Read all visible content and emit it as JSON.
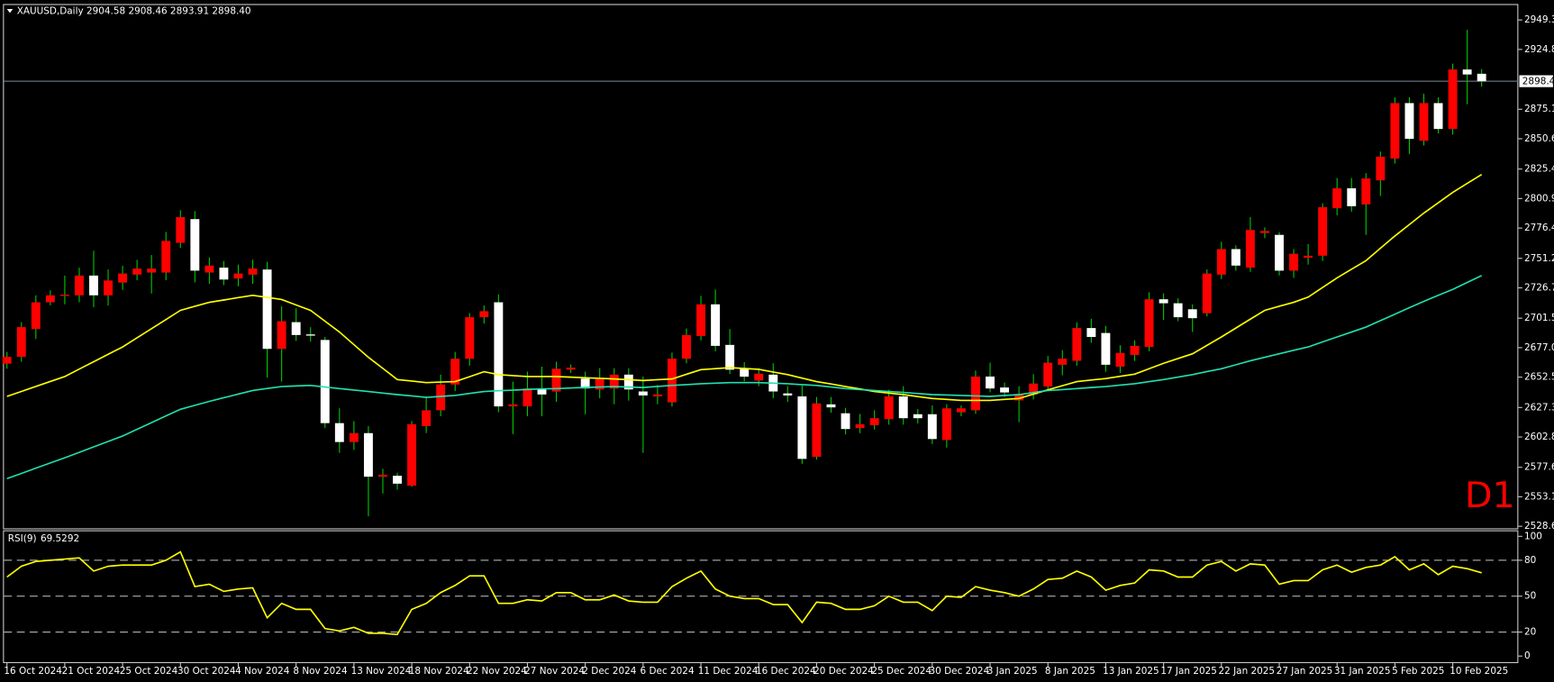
{
  "chart_data": [
    {
      "type": "candlestick",
      "title": "XAUUSD,Daily  2904.58 2908.46 2893.91 2898.40",
      "timeframe_label": "D1",
      "categories": [
        "16 Oct 2024",
        null,
        null,
        null,
        "21 Oct 2024",
        null,
        null,
        null,
        "25 Oct 2024",
        null,
        null,
        null,
        "30 Oct 2024",
        null,
        null,
        null,
        "4 Nov 2024",
        null,
        null,
        null,
        "8 Nov 2024",
        null,
        null,
        null,
        "13 Nov 2024",
        null,
        null,
        null,
        "18 Nov 2024",
        null,
        null,
        null,
        "22 Nov 2024",
        null,
        null,
        null,
        "27 Nov 2024",
        null,
        null,
        null,
        "2 Dec 2024",
        null,
        null,
        null,
        "6 Dec 2024",
        null,
        null,
        null,
        "11 Dec 2024",
        null,
        null,
        null,
        "16 Dec 2024",
        null,
        null,
        null,
        "20 Dec 2024",
        null,
        null,
        null,
        "25 Dec 2024",
        null,
        null,
        null,
        "30 Dec 2024",
        null,
        null,
        null,
        "3 Jan 2025",
        null,
        null,
        null,
        "8 Jan 2025",
        null,
        null,
        null,
        "13 Jan 2025",
        null,
        null,
        null,
        "17 Jan 2025",
        null,
        null,
        null,
        "22 Jan 2025",
        null,
        null,
        null,
        "27 Jan 2025",
        null,
        null,
        null,
        "31 Jan 2025",
        null,
        null,
        null,
        "5 Feb 2025",
        null,
        null,
        null,
        "10 Feb 2025",
        null,
        null
      ],
      "open": [
        2663.7,
        2669.4,
        2692.5,
        2714.7,
        2720,
        2720.5,
        2736.9,
        2720.5,
        2731.1,
        2737.7,
        2739.4,
        2739.4,
        2764.1,
        2783.8,
        2739.4,
        2743.5,
        2734.5,
        2737.7,
        2741.9,
        2676.0,
        2698.2,
        2688,
        2683.4,
        2614.3,
        2598.6,
        2606.0,
        2569.8,
        2570.6,
        2562.4,
        2611.8,
        2625.0,
        2646.4,
        2667.8,
        2702.3,
        2714.7,
        2628.2,
        2628.2,
        2642.3,
        2640.6,
        2658.7,
        2651.3,
        2642.3,
        2643.1,
        2654.6,
        2640.6,
        2636.5,
        2631.6,
        2667.8,
        2686.7,
        2713.0,
        2679.3,
        2659.5,
        2649.7,
        2654.6,
        2639.0,
        2636.5,
        2586.3,
        2629.9,
        2622.5,
        2610.2,
        2612.6,
        2617.6,
        2636.5,
        2621.7,
        2621.7,
        2600.3,
        2623.3,
        2625.0,
        2653.0,
        2643.9,
        2633.2,
        2638.1,
        2644.7,
        2662.8,
        2666.1,
        2693.3,
        2689.2,
        2661.2,
        2671.0,
        2677.6,
        2717.2,
        2713.9,
        2708.9,
        2705.6,
        2737.7,
        2758.9,
        2743.5,
        2772.3,
        2770.7,
        2741.0,
        2751.7,
        2753.4,
        2792.9,
        2809.4,
        2796.0,
        2816.0,
        2834.1,
        2880.2,
        2848.9,
        2880.2,
        2858.7,
        2908.1,
        2904.58
      ],
      "high": [
        2673.5,
        2698.2,
        2720.5,
        2724.6,
        2736.9,
        2743.5,
        2757.5,
        2742,
        2745,
        2750,
        2754,
        2773.1,
        2791.2,
        2790.4,
        2752,
        2749,
        2746,
        2750.1,
        2748.4,
        2711.4,
        2709.7,
        2694,
        2685.9,
        2626.6,
        2616,
        2611.8,
        2576.4,
        2573.1,
        2616,
        2636.5,
        2654.6,
        2673.5,
        2705.6,
        2712,
        2721.3,
        2648.8,
        2657.1,
        2661.2,
        2665.3,
        2663,
        2657.1,
        2660,
        2660,
        2660,
        2653,
        2646,
        2673,
        2693,
        2720,
        2725.4,
        2692.5,
        2665,
        2660,
        2664,
        2645,
        2645.6,
        2636,
        2636,
        2627,
        2622,
        2625,
        2642,
        2645,
        2626,
        2629,
        2630,
        2629,
        2658,
        2664.5,
        2648,
        2645,
        2655,
        2670,
        2675,
        2698,
        2701,
        2695,
        2679,
        2683,
        2723,
        2722.1,
        2718,
        2713,
        2742,
        2765,
        2762,
        2785.5,
        2777,
        2773,
        2759,
        2763,
        2797,
        2818,
        2818,
        2822,
        2840,
        2885,
        2885,
        2888,
        2885,
        2913,
        2941.1,
        2908.46
      ],
      "low": [
        2659.5,
        2665.3,
        2684.2,
        2712.2,
        2713,
        2714.7,
        2710.6,
        2712,
        2725,
        2733,
        2722,
        2733,
        2760,
        2731.2,
        2730,
        2729,
        2728,
        2730,
        2652.1,
        2648.8,
        2682.6,
        2682,
        2610.2,
        2589.6,
        2592,
        2536.9,
        2555.8,
        2559.1,
        2561.6,
        2606,
        2620,
        2641,
        2662,
        2697,
        2623.3,
        2605.2,
        2620,
        2620,
        2632,
        2656,
        2621.7,
        2635,
        2630,
        2633,
        2589.6,
        2630,
        2628,
        2664,
        2683,
        2674,
        2655,
        2649,
        2645,
        2635,
        2632,
        2580.5,
        2584,
        2623,
        2605,
        2606,
        2609,
        2613,
        2613,
        2614,
        2597,
        2594,
        2620,
        2622,
        2640,
        2636,
        2615.1,
        2634,
        2641,
        2654,
        2662,
        2681,
        2657,
        2656,
        2666,
        2674,
        2700,
        2699,
        2690,
        2703,
        2734,
        2741,
        2740,
        2768,
        2737,
        2735,
        2746,
        2749,
        2787,
        2790,
        2770.7,
        2803,
        2830,
        2838,
        2845,
        2855,
        2854,
        2879.3,
        2893.91
      ],
      "close": [
        2669.4,
        2694.1,
        2714.7,
        2720.5,
        2721,
        2736.9,
        2720.5,
        2732.8,
        2738.6,
        2742.7,
        2742.7,
        2765.7,
        2785.5,
        2741.0,
        2745.2,
        2733.6,
        2738.6,
        2742.7,
        2676.0,
        2699.0,
        2687.5,
        2687,
        2614.3,
        2598.6,
        2606.0,
        2569.8,
        2571.4,
        2564.0,
        2613.4,
        2625.0,
        2646.4,
        2667.8,
        2702.3,
        2707.3,
        2628.2,
        2629.9,
        2643.1,
        2638.1,
        2659.5,
        2660.4,
        2643.1,
        2652.1,
        2654.6,
        2642.3,
        2637.3,
        2638.1,
        2667.8,
        2687.5,
        2713.0,
        2678.5,
        2658.7,
        2652.9,
        2655.4,
        2640.6,
        2637.3,
        2584.6,
        2630.7,
        2627.4,
        2609.4,
        2613.4,
        2618.4,
        2636.5,
        2618.4,
        2618.4,
        2601.1,
        2626.6,
        2626.6,
        2653.0,
        2643.1,
        2639.8,
        2638.1,
        2647.2,
        2664.5,
        2667.8,
        2693.3,
        2685.9,
        2662.8,
        2672.6,
        2678.5,
        2717.2,
        2713.9,
        2702.3,
        2701.5,
        2738.6,
        2758.9,
        2745.2,
        2774.8,
        2773.9,
        2741.0,
        2755.0,
        2753.4,
        2793.7,
        2809.4,
        2794.5,
        2817.6,
        2835.7,
        2880.2,
        2850.5,
        2880.2,
        2858.7,
        2908.1,
        2904.0,
        2898.4
      ],
      "up_color": "#ff0000",
      "down_color": "#ffffff",
      "wick_color": "#00c800",
      "series": [
        {
          "color": "#ffff00",
          "values": [
            2636.5,
            2640.6,
            2644.8,
            2648.9,
            2653.0,
            2659.2,
            2665.3,
            2671.5,
            2677.6,
            2685.2,
            2692.8,
            2700.4,
            2708.0,
            2711.4,
            2714.7,
            2716.6,
            2718.6,
            2720.5,
            2718.8,
            2717.0,
            2712.5,
            2708.0,
            2699.0,
            2690.0,
            2679.5,
            2669.0,
            2659.8,
            2650.5,
            2649.3,
            2648.0,
            2648.4,
            2648.8,
            2652.9,
            2657.0,
            2654.6,
            2653.8,
            2653.0,
            2653.0,
            2653.0,
            2652.5,
            2652.0,
            2651.5,
            2651.0,
            2650.4,
            2649.7,
            2650.4,
            2651.0,
            2654.9,
            2658.7,
            2659.6,
            2660.4,
            2659.7,
            2659.0,
            2656.8,
            2654.6,
            2651.7,
            2648.8,
            2646.8,
            2644.7,
            2642.7,
            2640.6,
            2639.3,
            2638.0,
            2636.4,
            2634.8,
            2634.0,
            2633.2,
            2633.2,
            2633.2,
            2634.0,
            2634.8,
            2638.4,
            2642.0,
            2645.4,
            2648.8,
            2650.1,
            2651.3,
            2653.2,
            2655.0,
            2659.5,
            2664.0,
            2668.0,
            2671.9,
            2678.9,
            2685.9,
            2693.3,
            2700.7,
            2708.0,
            2711.4,
            2714.7,
            2719.0,
            2727.0,
            2735.0,
            2742.2,
            2749.3,
            2759.6,
            2769.8,
            2779.3,
            2788.8,
            2797.4,
            2806.0,
            2813.5,
            2820.9
          ]
        },
        {
          "color": "#20e0b0",
          "values": [
            2568.2,
            2572.5,
            2576.9,
            2581.2,
            2585.5,
            2590.0,
            2594.6,
            2599.1,
            2603.6,
            2609.2,
            2614.7,
            2620.3,
            2625.8,
            2629.1,
            2632.4,
            2635.4,
            2638.4,
            2641.4,
            2643.1,
            2644.7,
            2645.2,
            2645.6,
            2644.3,
            2643.0,
            2641.8,
            2640.6,
            2639.3,
            2638.0,
            2636.9,
            2635.7,
            2636.5,
            2637.3,
            2639.0,
            2640.6,
            2641.2,
            2641.7,
            2642.3,
            2642.7,
            2643.0,
            2643.5,
            2643.9,
            2644.3,
            2644.7,
            2644.3,
            2643.9,
            2644.8,
            2645.6,
            2646.3,
            2647.0,
            2647.5,
            2648.0,
            2648.0,
            2648.0,
            2647.5,
            2647.0,
            2646.3,
            2645.6,
            2644.3,
            2643.0,
            2642.2,
            2641.4,
            2640.6,
            2639.8,
            2638.9,
            2638.0,
            2637.7,
            2637.3,
            2636.9,
            2636.5,
            2637.3,
            2638.0,
            2639.7,
            2641.4,
            2642.2,
            2643.0,
            2643.9,
            2644.7,
            2645.9,
            2647.0,
            2648.8,
            2650.5,
            2652.6,
            2654.6,
            2657.1,
            2659.5,
            2662.8,
            2666.1,
            2669.0,
            2671.9,
            2674.8,
            2677.6,
            2681.8,
            2685.9,
            2690.0,
            2694.1,
            2699.5,
            2704.8,
            2710.2,
            2715.5,
            2720.5,
            2725.4,
            2731.2,
            2736.9
          ]
        }
      ],
      "ylim": [
        2526.9,
        2961.7
      ],
      "yticks": [
        {
          "value": 2949.3,
          "label": "2949.30"
        },
        {
          "value": 2924.8,
          "label": "2924.80"
        },
        {
          "value": 2875.1,
          "label": "2875.10"
        },
        {
          "value": 2850.6,
          "label": "2850.60"
        },
        {
          "value": 2825.4,
          "label": "2825.40"
        },
        {
          "value": 2800.9,
          "label": "2800.90"
        },
        {
          "value": 2776.4,
          "label": "2776.40"
        },
        {
          "value": 2751.2,
          "label": "2751.20"
        },
        {
          "value": 2726.7,
          "label": "2726.70"
        },
        {
          "value": 2701.5,
          "label": "2701.50"
        },
        {
          "value": 2677,
          "label": "2677.00"
        },
        {
          "value": 2652.5,
          "label": "2652.50"
        },
        {
          "value": 2627.3,
          "label": "2627.30"
        },
        {
          "value": 2602.8,
          "label": "2602.80"
        },
        {
          "value": 2577.6,
          "label": "2577.60"
        },
        {
          "value": 2553.1,
          "label": "2553.10"
        },
        {
          "value": 2528.6,
          "label": "2528.60"
        }
      ],
      "last_price": {
        "value": 2898.4,
        "label": "2898.40"
      },
      "last_price_color": "#7d8a99"
    },
    {
      "type": "line",
      "title": "RSI(9)",
      "color": "#ffff00",
      "values": [
        66,
        75,
        79,
        80,
        81,
        82,
        71,
        75,
        76,
        76,
        76,
        80,
        87,
        58,
        60,
        54,
        56,
        57,
        32,
        44,
        39,
        39,
        23,
        21,
        24,
        19,
        19,
        18,
        39,
        44,
        53,
        59,
        67,
        67,
        44,
        44,
        47,
        46,
        53,
        53,
        47,
        47,
        51,
        46,
        45,
        45,
        58,
        65,
        71,
        56,
        50,
        48,
        48,
        43,
        43,
        28,
        45,
        44,
        39,
        39,
        42,
        50,
        45,
        45,
        38,
        50,
        49,
        58,
        55,
        53,
        50,
        56,
        64,
        65,
        71,
        66,
        55,
        59,
        61,
        72,
        71,
        66,
        66,
        76,
        79,
        71,
        77,
        76,
        60,
        63,
        63,
        72,
        76,
        70,
        74,
        76,
        83,
        72,
        77,
        68,
        75,
        73,
        69.5292
      ],
      "ylim": [
        -5.9,
        104.2
      ],
      "yticks": [
        0,
        20,
        50,
        80,
        100
      ],
      "levels": [
        20,
        50,
        80
      ]
    }
  ]
}
